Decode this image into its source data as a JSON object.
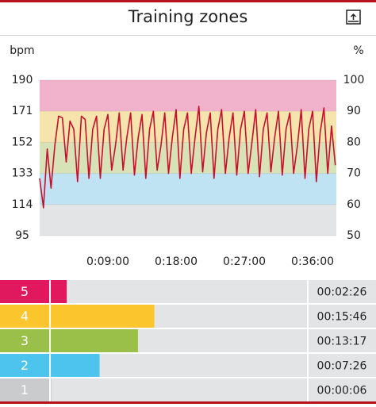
{
  "header": {
    "title": "Training zones"
  },
  "chart_data": {
    "type": "line",
    "y_label": "bpm",
    "y2_label": "%",
    "x": [
      0,
      30,
      60,
      90,
      120,
      150,
      180,
      210,
      240,
      270,
      300,
      330,
      360,
      390,
      420,
      450,
      480,
      510,
      540,
      570,
      600,
      630,
      660,
      690,
      720,
      750,
      780,
      810,
      840,
      870,
      900,
      930,
      960,
      990,
      1020,
      1050,
      1080,
      1110,
      1140,
      1170,
      1200,
      1230,
      1260,
      1290,
      1320,
      1350,
      1380,
      1410,
      1440,
      1470,
      1500,
      1530,
      1560,
      1590,
      1620,
      1650,
      1680,
      1710,
      1740,
      1770,
      1800,
      1830,
      1860,
      1890,
      1920,
      1950,
      1980,
      2010,
      2040,
      2070,
      2100,
      2130,
      2160,
      2190,
      2220,
      2250,
      2280,
      2310,
      2340
    ],
    "values": [
      130,
      112,
      148,
      124,
      150,
      168,
      167,
      140,
      165,
      160,
      128,
      168,
      166,
      130,
      160,
      168,
      130,
      160,
      169,
      135,
      150,
      170,
      135,
      155,
      170,
      132,
      155,
      169,
      130,
      160,
      171,
      135,
      150,
      170,
      133,
      155,
      172,
      130,
      160,
      170,
      133,
      155,
      174,
      134,
      158,
      170,
      130,
      160,
      172,
      133,
      155,
      170,
      132,
      160,
      171,
      133,
      152,
      172,
      131,
      160,
      170,
      134,
      155,
      171,
      132,
      160,
      170,
      133,
      150,
      172,
      130,
      160,
      171,
      128,
      158,
      173,
      133,
      162,
      138
    ],
    "color": "#c8102e",
    "xlim": [
      0,
      2348
    ],
    "xticks": [
      {
        "value": 540,
        "label": "0:09:00"
      },
      {
        "value": 1080,
        "label": "0:18:00"
      },
      {
        "value": 1620,
        "label": "0:27:00"
      },
      {
        "value": 2160,
        "label": "0:36:00"
      }
    ],
    "ylim": [
      95,
      190
    ],
    "yticks": [
      190,
      171,
      152,
      133,
      114,
      95
    ],
    "y2lim": [
      50,
      100
    ],
    "y2ticks": [
      100,
      90,
      80,
      70,
      60,
      50
    ],
    "band_colors": [
      "#f0b3cb",
      "#f6e4ad",
      "#d7e3b6",
      "#c0e3f4",
      "#e3e4e5"
    ]
  },
  "zones": {
    "xlim": [
      0,
      2341
    ],
    "rows": [
      {
        "label": "5",
        "seconds": 146,
        "time": "00:02:26",
        "color": "#e0185e"
      },
      {
        "label": "4",
        "seconds": 946,
        "time": "00:15:46",
        "color": "#fbc52d"
      },
      {
        "label": "3",
        "seconds": 797,
        "time": "00:13:17",
        "color": "#9bc04a"
      },
      {
        "label": "2",
        "seconds": 446,
        "time": "00:07:26",
        "color": "#4dc4ee"
      },
      {
        "label": "1",
        "seconds": 6,
        "time": "00:00:06",
        "color": "#c9cbcc"
      }
    ]
  }
}
